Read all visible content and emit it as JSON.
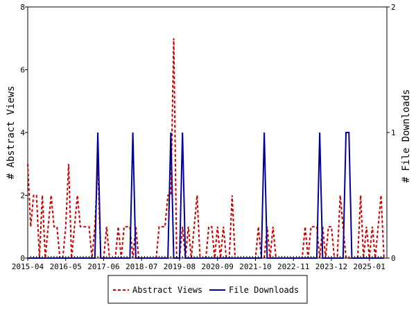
{
  "chart_data": {
    "type": "line",
    "title": "",
    "ylabel": "# Abstract Views",
    "y2label": "# File Downloads",
    "ylim": [
      0,
      8
    ],
    "y2lim": [
      0,
      2
    ],
    "yticks": [
      "0",
      "2",
      "4",
      "6",
      "8"
    ],
    "y2ticks": [
      "0",
      "1",
      "2"
    ],
    "xticks": [
      "2015-04",
      "2016-05",
      "2017-06",
      "2018-07",
      "2019-08",
      "2020-09",
      "2021-10",
      "2022-11",
      "2023-12",
      "2025-01"
    ],
    "x_months": 123,
    "legend_position": "bottom-center",
    "colors": {
      "abstract": "#cc0000",
      "downloads": "#000099",
      "grid": "#000000"
    },
    "series": [
      {
        "name": "Abstract Views",
        "axis": "left",
        "style": "dashed",
        "values": [
          3,
          1,
          2,
          2,
          0,
          2,
          0,
          1,
          2,
          1,
          1,
          0,
          0,
          1,
          3,
          0,
          1,
          2,
          1,
          1,
          1,
          1,
          0,
          1,
          3,
          0,
          0,
          1,
          0,
          0,
          0,
          1,
          0,
          1,
          1,
          1,
          0,
          1,
          0,
          0,
          0,
          0,
          0,
          0,
          0,
          1,
          1,
          1,
          2,
          2,
          7,
          0,
          0,
          1,
          0,
          1,
          0,
          1,
          2,
          0,
          0,
          0,
          1,
          1,
          0,
          1,
          0,
          1,
          0,
          0,
          2,
          0,
          0,
          0,
          0,
          0,
          0,
          0,
          0,
          1,
          0,
          0,
          1,
          0,
          1,
          0,
          0,
          0,
          0,
          0,
          0,
          0,
          0,
          0,
          0,
          1,
          0,
          1,
          1,
          1,
          0,
          1,
          0,
          1,
          1,
          0,
          0,
          2,
          1,
          0,
          0,
          0,
          0,
          0,
          2,
          0,
          1,
          0,
          1,
          0,
          1,
          2,
          0
        ]
      },
      {
        "name": "File Downloads",
        "axis": "right",
        "style": "solid",
        "values": [
          0,
          0,
          0,
          0,
          0,
          0,
          0,
          0,
          0,
          0,
          0,
          0,
          0,
          0,
          0,
          0,
          0,
          0,
          0,
          0,
          0,
          0,
          0,
          0,
          1,
          0,
          0,
          0,
          0,
          0,
          0,
          0,
          0,
          0,
          0,
          0,
          1,
          0,
          0,
          0,
          0,
          0,
          0,
          0,
          0,
          0,
          0,
          0,
          0,
          1,
          0,
          0,
          0,
          1,
          0,
          0,
          0,
          0,
          0,
          0,
          0,
          0,
          0,
          0,
          0,
          0,
          0,
          0,
          0,
          0,
          0,
          0,
          0,
          0,
          0,
          0,
          0,
          0,
          0,
          0,
          0,
          1,
          0,
          0,
          0,
          0,
          0,
          0,
          0,
          0,
          0,
          0,
          0,
          0,
          0,
          0,
          0,
          0,
          0,
          0,
          1,
          0,
          0,
          0,
          0,
          0,
          0,
          0,
          0,
          1,
          1,
          0,
          0,
          0,
          0,
          0,
          0,
          0,
          0,
          0,
          0,
          0,
          0
        ]
      }
    ]
  }
}
